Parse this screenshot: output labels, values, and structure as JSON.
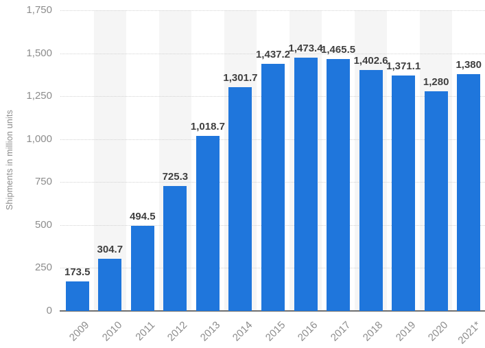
{
  "chart_data": {
    "type": "bar",
    "title": "",
    "xlabel": "",
    "ylabel": "Shipments in million units",
    "categories": [
      "2009",
      "2010",
      "2011",
      "2012",
      "2013",
      "2014",
      "2015",
      "2016",
      "2017",
      "2018",
      "2019",
      "2020",
      "2021*"
    ],
    "values": [
      173.5,
      304.7,
      494.5,
      725.3,
      1018.7,
      1301.7,
      1437.2,
      1473.4,
      1465.5,
      1402.6,
      1371.1,
      1280,
      1380
    ],
    "value_labels": [
      "173.5",
      "304.7",
      "494.5",
      "725.3",
      "1,018.7",
      "1,301.7",
      "1,437.2",
      "1,473.4",
      "1,465.5",
      "1,402.6",
      "1,371.1",
      "1,280",
      "1,380"
    ],
    "y_tick_values": [
      0,
      250,
      500,
      750,
      1000,
      1250,
      1500,
      1750
    ],
    "y_tick_labels": [
      "0",
      "250",
      "500",
      "750",
      "1,000",
      "1,250",
      "1,500",
      "1,750"
    ],
    "ylim": [
      0,
      1750
    ],
    "grid": "horizontal-dotted",
    "legend": "none",
    "bar_color": "#1f76dc",
    "stripe_color": "#f5f5f5",
    "gridline_color": "#d2d2d2",
    "axis_line_color": "#6e6e6e",
    "tick_label_color": "#8c8c8c",
    "value_label_color": "#3f3f3f",
    "striped_category_indices": [
      1,
      3,
      5,
      7,
      9,
      11
    ]
  }
}
